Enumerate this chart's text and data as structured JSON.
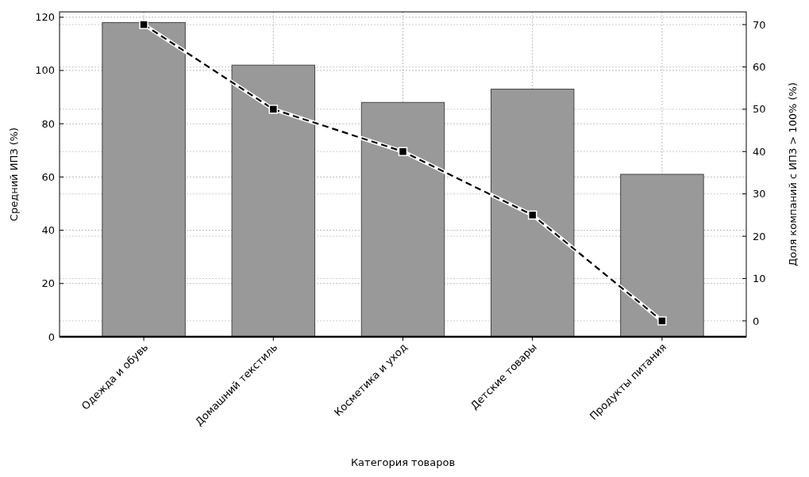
{
  "chart_data": {
    "type": "bar",
    "xlabel": "Категория товаров",
    "ylabel": "Средний ИПЗ (%)",
    "y2label": "Доля компаний с ИПЗ > 100% (%)",
    "categories": [
      "Одежда и обувь",
      "Домашний текстиль",
      "Косметика и уход",
      "Детские товары",
      "Продукты питания"
    ],
    "series": [
      {
        "color": "#999999",
        "values": [
          118,
          102,
          88,
          93,
          61
        ]
      },
      {
        "type": "line",
        "axis": "y2",
        "color": "#000000",
        "values": [
          70,
          50,
          40,
          25,
          0
        ],
        "marker": "square",
        "line_style": "dashed"
      }
    ],
    "ylim": [
      0,
      122
    ],
    "yticks": [
      0,
      20,
      40,
      60,
      80,
      100,
      120
    ],
    "y2lim": [
      -3.75,
      73
    ],
    "y2ticks": [
      0,
      10,
      20,
      30,
      40,
      50,
      60,
      70
    ],
    "grid": true
  }
}
